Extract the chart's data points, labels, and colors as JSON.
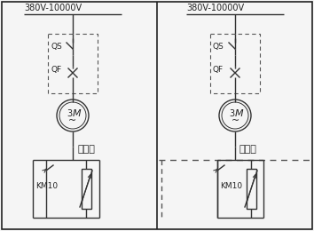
{
  "bg_color": "#f5f5f5",
  "line_color": "#333333",
  "dash_color": "#555555",
  "text_color": "#222222",
  "left_label": "380V-10000V",
  "right_label": "380V-10000V",
  "left_type": "普通型",
  "right_type": "改造型",
  "qs_label": "QS",
  "qf_label": "QF",
  "km_label": "KM10",
  "figsize": [
    3.54,
    2.6
  ],
  "dpi": 100
}
